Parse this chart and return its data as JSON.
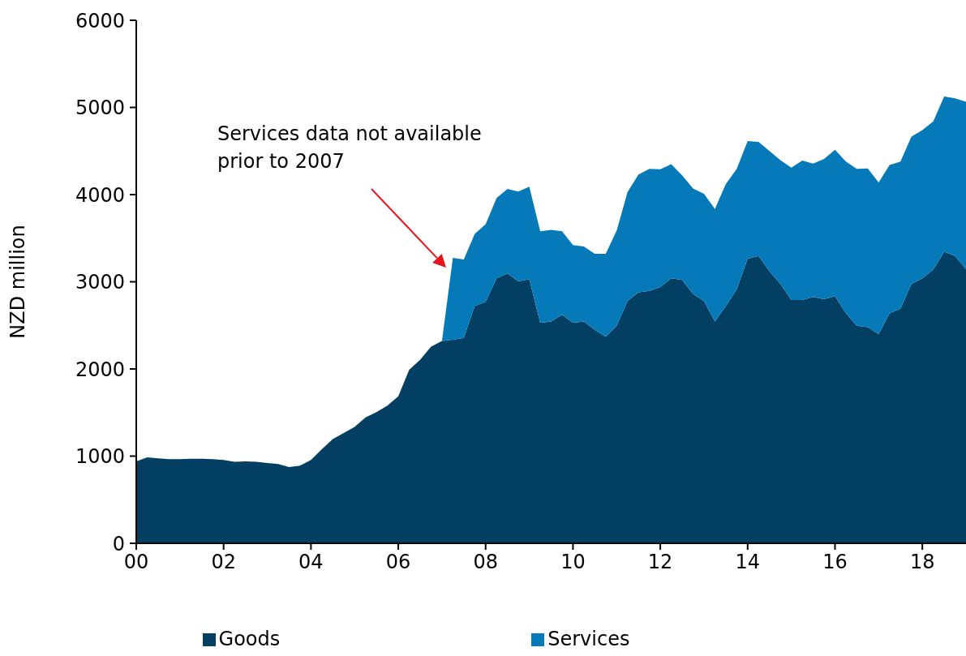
{
  "chart_data": {
    "type": "area",
    "stacked": true,
    "ylabel": "NZD million",
    "x": [
      0,
      0.25,
      0.5,
      0.75,
      1,
      1.25,
      1.5,
      1.75,
      2,
      2.25,
      2.5,
      2.75,
      3,
      3.25,
      3.5,
      3.75,
      4,
      4.25,
      4.5,
      4.75,
      5,
      5.25,
      5.5,
      5.75,
      6,
      6.25,
      6.5,
      6.75,
      7,
      7.25,
      7.5,
      7.75,
      8,
      8.25,
      8.5,
      8.75,
      9,
      9.25,
      9.5,
      9.75,
      10,
      10.25,
      10.5,
      10.75,
      11,
      11.25,
      11.5,
      11.75,
      12,
      12.25,
      12.5,
      12.75,
      13,
      13.25,
      13.5,
      13.75,
      14,
      14.25,
      14.5,
      14.75,
      15,
      15.25,
      15.5,
      15.75,
      16,
      16.25,
      16.5,
      16.75,
      17,
      17.25,
      17.5,
      17.75,
      18,
      18.25,
      18.5,
      18.75,
      19
    ],
    "series": [
      {
        "name": "Goods",
        "color": "#023f63",
        "values": [
          940,
          985,
          975,
          965,
          965,
          970,
          970,
          965,
          955,
          935,
          940,
          935,
          920,
          910,
          875,
          890,
          955,
          1080,
          1195,
          1265,
          1335,
          1445,
          1505,
          1580,
          1685,
          1990,
          2105,
          2255,
          2320,
          2335,
          2355,
          2720,
          2770,
          3040,
          3095,
          3005,
          3030,
          2530,
          2545,
          2620,
          2530,
          2545,
          2450,
          2370,
          2495,
          2780,
          2880,
          2895,
          2940,
          3040,
          3020,
          2860,
          2780,
          2545,
          2720,
          2915,
          3265,
          3295,
          3120,
          2975,
          2790,
          2790,
          2825,
          2800,
          2835,
          2640,
          2495,
          2480,
          2400,
          2640,
          2690,
          2975,
          3040,
          3140,
          3345,
          3295,
          3145
        ]
      },
      {
        "name": "Services",
        "color": "#0679b8",
        "values": [
          null,
          null,
          null,
          null,
          null,
          null,
          null,
          null,
          null,
          null,
          null,
          null,
          null,
          null,
          null,
          null,
          null,
          null,
          null,
          null,
          null,
          null,
          null,
          null,
          null,
          null,
          null,
          null,
          0,
          940,
          900,
          830,
          890,
          920,
          970,
          1030,
          1060,
          1050,
          1050,
          960,
          890,
          860,
          870,
          950,
          1090,
          1250,
          1350,
          1400,
          1350,
          1310,
          1200,
          1210,
          1230,
          1290,
          1400,
          1380,
          1350,
          1310,
          1380,
          1420,
          1520,
          1600,
          1530,
          1610,
          1680,
          1740,
          1800,
          1820,
          1740,
          1700,
          1690,
          1690,
          1700,
          1700,
          1780,
          1810,
          1920
        ]
      }
    ],
    "xlim": [
      0,
      19
    ],
    "xticks": [
      {
        "value": 0,
        "label": "00"
      },
      {
        "value": 2,
        "label": "02"
      },
      {
        "value": 4,
        "label": "04"
      },
      {
        "value": 6,
        "label": "06"
      },
      {
        "value": 8,
        "label": "08"
      },
      {
        "value": 10,
        "label": "10"
      },
      {
        "value": 12,
        "label": "12"
      },
      {
        "value": 14,
        "label": "14"
      },
      {
        "value": 16,
        "label": "16"
      },
      {
        "value": 18,
        "label": "18"
      }
    ],
    "ylim": [
      0,
      6000
    ],
    "yticks": [
      0,
      1000,
      2000,
      3000,
      4000,
      5000,
      6000
    ],
    "grid": false,
    "legend": "bottom",
    "annotations": [
      "Services data not available prior to 2007"
    ]
  }
}
